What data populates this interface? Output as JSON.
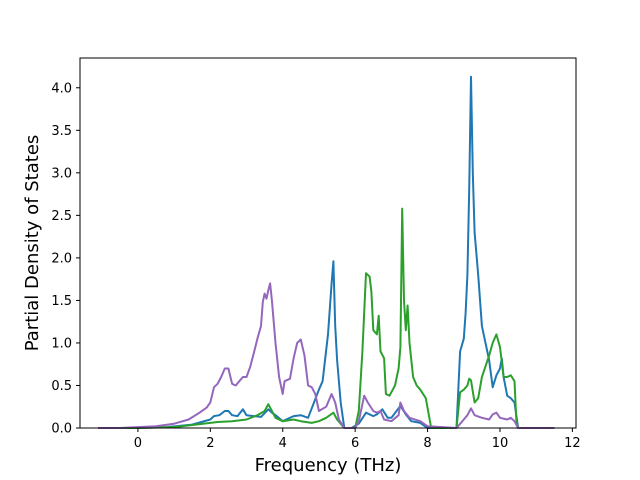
{
  "chart_data": {
    "type": "line",
    "xlabel": "Frequency (THz)",
    "ylabel": "Partial Density of States",
    "xlim": [
      -1.6,
      12.1
    ],
    "ylim": [
      0,
      4.35
    ],
    "xticks": [
      0,
      2,
      4,
      6,
      8,
      10,
      12
    ],
    "yticks": [
      0.0,
      0.5,
      1.0,
      1.5,
      2.0,
      2.5,
      3.0,
      3.5,
      4.0
    ],
    "xtick_labels": [
      "0",
      "2",
      "4",
      "6",
      "8",
      "10",
      "12"
    ],
    "ytick_labels": [
      "0.0",
      "0.5",
      "1.0",
      "1.5",
      "2.0",
      "2.5",
      "3.0",
      "3.5",
      "4.0"
    ],
    "grid": false,
    "series": [
      {
        "color": "#1f77b4",
        "points": [
          [
            -1.1,
            0
          ],
          [
            0,
            0
          ],
          [
            0.8,
            0.01
          ],
          [
            1.5,
            0.04
          ],
          [
            2.0,
            0.1
          ],
          [
            2.1,
            0.14
          ],
          [
            2.25,
            0.15
          ],
          [
            2.4,
            0.2
          ],
          [
            2.5,
            0.2
          ],
          [
            2.6,
            0.15
          ],
          [
            2.75,
            0.14
          ],
          [
            2.9,
            0.22
          ],
          [
            3.0,
            0.15
          ],
          [
            3.2,
            0.14
          ],
          [
            3.4,
            0.13
          ],
          [
            3.6,
            0.22
          ],
          [
            3.7,
            0.18
          ],
          [
            3.8,
            0.15
          ],
          [
            4.0,
            0.08
          ],
          [
            4.3,
            0.14
          ],
          [
            4.5,
            0.15
          ],
          [
            4.7,
            0.12
          ],
          [
            5.0,
            0.45
          ],
          [
            5.1,
            0.55
          ],
          [
            5.25,
            1.1
          ],
          [
            5.35,
            1.7
          ],
          [
            5.4,
            1.96
          ],
          [
            5.45,
            1.2
          ],
          [
            5.5,
            0.8
          ],
          [
            5.6,
            0.3
          ],
          [
            5.7,
            0.0
          ],
          [
            5.9,
            0.0
          ],
          [
            6.1,
            0.05
          ],
          [
            6.3,
            0.18
          ],
          [
            6.5,
            0.14
          ],
          [
            6.6,
            0.16
          ],
          [
            6.75,
            0.22
          ],
          [
            6.9,
            0.12
          ],
          [
            7.0,
            0.12
          ],
          [
            7.25,
            0.26
          ],
          [
            7.4,
            0.16
          ],
          [
            7.55,
            0.08
          ],
          [
            7.8,
            0.06
          ],
          [
            8.0,
            0.0
          ],
          [
            8.8,
            0.0
          ],
          [
            8.9,
            0.9
          ],
          [
            9.0,
            1.05
          ],
          [
            9.05,
            1.35
          ],
          [
            9.1,
            1.8
          ],
          [
            9.15,
            2.8
          ],
          [
            9.2,
            4.13
          ],
          [
            9.25,
            3.0
          ],
          [
            9.3,
            2.3
          ],
          [
            9.4,
            1.8
          ],
          [
            9.5,
            1.2
          ],
          [
            9.6,
            1.0
          ],
          [
            9.7,
            0.8
          ],
          [
            9.8,
            0.48
          ],
          [
            9.9,
            0.62
          ],
          [
            10.0,
            0.7
          ],
          [
            10.05,
            0.82
          ],
          [
            10.1,
            0.6
          ],
          [
            10.2,
            0.38
          ],
          [
            10.3,
            0.35
          ],
          [
            10.4,
            0.3
          ],
          [
            10.5,
            0.0
          ],
          [
            11.5,
            0.0
          ]
        ]
      },
      {
        "color": "#2ca02c",
        "points": [
          [
            -1.1,
            0
          ],
          [
            0,
            0
          ],
          [
            1.0,
            0.01
          ],
          [
            1.8,
            0.05
          ],
          [
            2.2,
            0.07
          ],
          [
            2.6,
            0.08
          ],
          [
            3.0,
            0.1
          ],
          [
            3.3,
            0.15
          ],
          [
            3.5,
            0.2
          ],
          [
            3.6,
            0.28
          ],
          [
            3.7,
            0.2
          ],
          [
            3.8,
            0.12
          ],
          [
            4.0,
            0.08
          ],
          [
            4.3,
            0.1
          ],
          [
            4.5,
            0.08
          ],
          [
            4.8,
            0.06
          ],
          [
            5.0,
            0.08
          ],
          [
            5.2,
            0.12
          ],
          [
            5.4,
            0.18
          ],
          [
            5.5,
            0.1
          ],
          [
            5.6,
            0.05
          ],
          [
            5.7,
            0.0
          ],
          [
            6.0,
            0.0
          ],
          [
            6.1,
            0.2
          ],
          [
            6.2,
            0.9
          ],
          [
            6.3,
            1.82
          ],
          [
            6.4,
            1.78
          ],
          [
            6.45,
            1.6
          ],
          [
            6.5,
            1.15
          ],
          [
            6.6,
            1.1
          ],
          [
            6.65,
            1.32
          ],
          [
            6.7,
            0.9
          ],
          [
            6.8,
            0.82
          ],
          [
            6.85,
            0.4
          ],
          [
            6.95,
            0.38
          ],
          [
            7.1,
            0.5
          ],
          [
            7.2,
            0.7
          ],
          [
            7.25,
            0.95
          ],
          [
            7.3,
            2.58
          ],
          [
            7.35,
            1.5
          ],
          [
            7.4,
            1.15
          ],
          [
            7.45,
            1.44
          ],
          [
            7.5,
            1.0
          ],
          [
            7.6,
            0.6
          ],
          [
            7.7,
            0.5
          ],
          [
            7.8,
            0.45
          ],
          [
            7.95,
            0.35
          ],
          [
            8.1,
            0.0
          ],
          [
            8.8,
            0.0
          ],
          [
            8.9,
            0.42
          ],
          [
            9.0,
            0.45
          ],
          [
            9.1,
            0.5
          ],
          [
            9.15,
            0.58
          ],
          [
            9.2,
            0.56
          ],
          [
            9.3,
            0.3
          ],
          [
            9.4,
            0.35
          ],
          [
            9.5,
            0.6
          ],
          [
            9.7,
            0.85
          ],
          [
            9.8,
            1.0
          ],
          [
            9.9,
            1.1
          ],
          [
            10.0,
            0.95
          ],
          [
            10.1,
            0.6
          ],
          [
            10.2,
            0.6
          ],
          [
            10.3,
            0.62
          ],
          [
            10.4,
            0.55
          ],
          [
            10.45,
            0.1
          ],
          [
            10.5,
            0.0
          ],
          [
            11.5,
            0.0
          ]
        ]
      },
      {
        "color": "#9467bd",
        "points": [
          [
            -1.1,
            0
          ],
          [
            -0.5,
            0
          ],
          [
            0,
            0.01
          ],
          [
            0.5,
            0.02
          ],
          [
            1.0,
            0.05
          ],
          [
            1.4,
            0.1
          ],
          [
            1.7,
            0.18
          ],
          [
            1.9,
            0.24
          ],
          [
            2.0,
            0.3
          ],
          [
            2.1,
            0.48
          ],
          [
            2.2,
            0.52
          ],
          [
            2.3,
            0.6
          ],
          [
            2.4,
            0.7
          ],
          [
            2.5,
            0.7
          ],
          [
            2.6,
            0.52
          ],
          [
            2.7,
            0.5
          ],
          [
            2.8,
            0.55
          ],
          [
            2.9,
            0.6
          ],
          [
            3.0,
            0.6
          ],
          [
            3.1,
            0.72
          ],
          [
            3.2,
            0.88
          ],
          [
            3.3,
            1.05
          ],
          [
            3.4,
            1.2
          ],
          [
            3.45,
            1.48
          ],
          [
            3.5,
            1.58
          ],
          [
            3.55,
            1.52
          ],
          [
            3.6,
            1.62
          ],
          [
            3.65,
            1.7
          ],
          [
            3.7,
            1.5
          ],
          [
            3.8,
            1.0
          ],
          [
            3.9,
            0.6
          ],
          [
            4.0,
            0.4
          ],
          [
            4.05,
            0.55
          ],
          [
            4.2,
            0.58
          ],
          [
            4.3,
            0.82
          ],
          [
            4.4,
            1.0
          ],
          [
            4.5,
            1.04
          ],
          [
            4.6,
            0.85
          ],
          [
            4.7,
            0.5
          ],
          [
            4.8,
            0.48
          ],
          [
            4.9,
            0.4
          ],
          [
            5.0,
            0.2
          ],
          [
            5.2,
            0.25
          ],
          [
            5.35,
            0.4
          ],
          [
            5.45,
            0.3
          ],
          [
            5.55,
            0.1
          ],
          [
            5.7,
            0.0
          ],
          [
            6.0,
            0.0
          ],
          [
            6.1,
            0.08
          ],
          [
            6.25,
            0.38
          ],
          [
            6.35,
            0.3
          ],
          [
            6.5,
            0.2
          ],
          [
            6.6,
            0.18
          ],
          [
            6.7,
            0.2
          ],
          [
            6.8,
            0.1
          ],
          [
            7.0,
            0.08
          ],
          [
            7.2,
            0.15
          ],
          [
            7.25,
            0.3
          ],
          [
            7.35,
            0.2
          ],
          [
            7.5,
            0.12
          ],
          [
            7.8,
            0.08
          ],
          [
            8.0,
            0.02
          ],
          [
            8.8,
            0.0
          ],
          [
            9.0,
            0.1
          ],
          [
            9.1,
            0.15
          ],
          [
            9.2,
            0.23
          ],
          [
            9.3,
            0.15
          ],
          [
            9.5,
            0.12
          ],
          [
            9.7,
            0.1
          ],
          [
            9.8,
            0.16
          ],
          [
            9.9,
            0.18
          ],
          [
            10.0,
            0.12
          ],
          [
            10.2,
            0.1
          ],
          [
            10.3,
            0.12
          ],
          [
            10.4,
            0.08
          ],
          [
            10.5,
            0.0
          ],
          [
            11.5,
            0.0
          ]
        ]
      }
    ]
  }
}
